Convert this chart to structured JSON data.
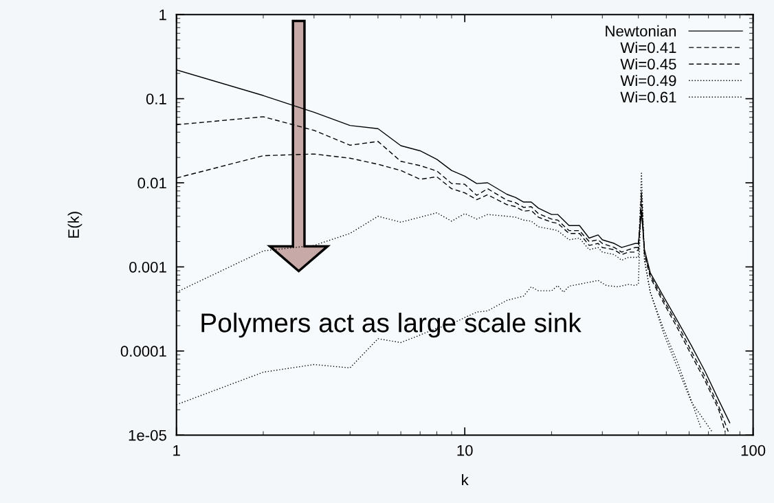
{
  "chart_data": {
    "type": "line",
    "xlabel": "k",
    "ylabel": "E(k)",
    "log": "xy",
    "xlim": [
      1,
      100
    ],
    "ylim": [
      1e-05,
      1
    ],
    "xticks": [
      1,
      10,
      100
    ],
    "yticks": [
      {
        "value": 1e-05,
        "label": "1e-05"
      },
      {
        "value": 0.0001,
        "label": "0.0001"
      },
      {
        "value": 0.001,
        "label": "0.001"
      },
      {
        "value": 0.01,
        "label": "0.01"
      },
      {
        "value": 0.1,
        "label": "0.1"
      },
      1
    ],
    "legend": "top right",
    "grid": false,
    "annotations": [
      "Polymers act as large scale sink"
    ],
    "series": [
      {
        "name": "Newtonian",
        "color": "#000000",
        "line_style": "solid",
        "x": [
          1,
          2,
          3,
          4,
          5,
          6,
          7,
          8,
          9,
          10,
          11,
          12,
          14,
          15,
          16,
          17,
          18,
          20,
          21,
          23,
          25,
          27,
          29,
          30,
          33,
          35,
          37,
          39,
          40,
          41,
          42,
          44,
          49,
          55,
          61,
          68,
          76,
          83
        ],
        "values": [
          0.22,
          0.109,
          0.069,
          0.048,
          0.044,
          0.0276,
          0.024,
          0.019,
          0.014,
          0.012,
          0.0098,
          0.01,
          0.0073,
          0.0067,
          0.0059,
          0.0059,
          0.005,
          0.0042,
          0.0042,
          0.0031,
          0.0031,
          0.0022,
          0.0024,
          0.0021,
          0.0019,
          0.0017,
          0.0018,
          0.0019,
          0.0019,
          0.0045,
          0.0016,
          0.00085,
          0.00044,
          0.00022,
          0.000117,
          5.8e-05,
          2.6e-05,
          1.4e-05
        ]
      },
      {
        "name": "Wi=0.41",
        "color": "#000000",
        "line_style": "dashed",
        "x": [
          1,
          2,
          3,
          4,
          5,
          6,
          7,
          8,
          9,
          10,
          11,
          12,
          14,
          15,
          16,
          17,
          18,
          20,
          21,
          23,
          25,
          27,
          29,
          30,
          33,
          35,
          37,
          39,
          40,
          41,
          42,
          44,
          49,
          55,
          61,
          68,
          76,
          82
        ],
        "values": [
          0.049,
          0.061,
          0.042,
          0.028,
          0.031,
          0.018,
          0.016,
          0.0138,
          0.0098,
          0.0096,
          0.0071,
          0.0085,
          0.0062,
          0.0058,
          0.0051,
          0.0052,
          0.0043,
          0.0037,
          0.0036,
          0.0027,
          0.0027,
          0.002,
          0.0021,
          0.0019,
          0.0017,
          0.0015,
          0.0016,
          0.0017,
          0.0017,
          0.0055,
          0.0015,
          0.0008,
          0.0004,
          0.0002,
          0.0001,
          5e-05,
          2.2e-05,
          1.1e-05
        ]
      },
      {
        "name": "Wi=0.45",
        "color": "#000000",
        "line_style": "dashed",
        "x": [
          1,
          2,
          3,
          4,
          5,
          6,
          7,
          8,
          9,
          10,
          11,
          12,
          14,
          15,
          16,
          17,
          18,
          20,
          21,
          23,
          25,
          27,
          29,
          30,
          33,
          35,
          37,
          39,
          40,
          41,
          42,
          44,
          49,
          55,
          61,
          68,
          76,
          80
        ],
        "values": [
          0.0114,
          0.021,
          0.022,
          0.0196,
          0.0166,
          0.014,
          0.011,
          0.0118,
          0.0085,
          0.0076,
          0.0063,
          0.0072,
          0.0055,
          0.0052,
          0.0046,
          0.0047,
          0.0039,
          0.0034,
          0.0033,
          0.0025,
          0.0025,
          0.0018,
          0.0019,
          0.0017,
          0.0016,
          0.0014,
          0.0015,
          0.0015,
          0.0016,
          0.0074,
          0.0014,
          0.00075,
          0.00037,
          0.00018,
          9e-05,
          4.5e-05,
          2e-05,
          1.1e-05
        ]
      },
      {
        "name": "Wi=0.49",
        "color": "#000000",
        "line_style": "dotted",
        "x": [
          1,
          2,
          3,
          4,
          5,
          6,
          7,
          8,
          9,
          10,
          11,
          12,
          14,
          15,
          16,
          17,
          18,
          20,
          21,
          23,
          25,
          27,
          29,
          30,
          33,
          35,
          37,
          39,
          40,
          41,
          42,
          44,
          49,
          55,
          61,
          66
        ],
        "values": [
          0.0005,
          0.00155,
          0.0018,
          0.0025,
          0.004,
          0.0034,
          0.0039,
          0.0044,
          0.0035,
          0.0043,
          0.0037,
          0.0042,
          0.004,
          0.0039,
          0.0036,
          0.0035,
          0.003,
          0.0028,
          0.0027,
          0.0021,
          0.0022,
          0.0016,
          0.0017,
          0.0015,
          0.0014,
          0.0012,
          0.0013,
          0.0013,
          0.0013,
          0.013,
          0.0012,
          0.0005,
          0.00018,
          7e-05,
          2.6e-05,
          1.2e-05
        ]
      },
      {
        "name": "Wi=0.61",
        "color": "#000000",
        "line_style": "dotted",
        "x": [
          1,
          2,
          3,
          4,
          5,
          6,
          7,
          8,
          9,
          10,
          11,
          12,
          14,
          16,
          17,
          18,
          20,
          21,
          22,
          23,
          26,
          29,
          31,
          34,
          37,
          39,
          40,
          41,
          42,
          44,
          49,
          55,
          61,
          72
        ],
        "values": [
          2.3e-05,
          5.6e-05,
          6.9e-05,
          6.3e-05,
          0.00014,
          0.000126,
          0.000155,
          0.000186,
          0.00021,
          0.00025,
          0.00029,
          0.0003,
          0.0004,
          0.00045,
          0.00058,
          0.00052,
          0.00052,
          0.0006,
          0.0005,
          0.00059,
          0.00064,
          0.00069,
          0.0006,
          0.00058,
          0.00062,
          0.0006,
          0.00062,
          0.008,
          0.0012,
          0.0005,
          0.00016,
          6e-05,
          2.5e-05,
          1.1e-05
        ]
      }
    ]
  }
}
